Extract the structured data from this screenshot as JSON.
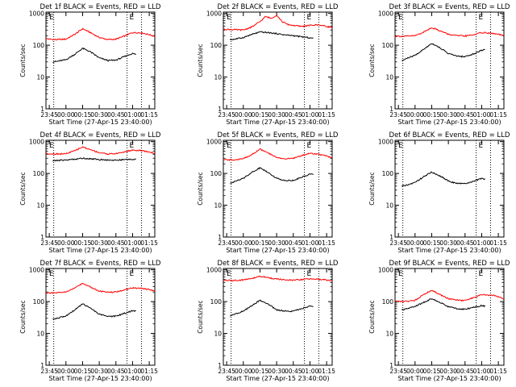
{
  "colors": {
    "events": "#000000",
    "lld": "#ff0000",
    "axis": "#000000",
    "background": "#ffffff"
  },
  "chart_data": [
    {
      "type": "line",
      "title": "Det 1f BLACK = Events, RED = LLD",
      "xlabel": "Start Time (27-Apr-15 23:40:00)",
      "ylabel": "Counts/sec",
      "yscale": "log",
      "ylim": [
        1,
        1100
      ],
      "xlim": [
        "23:42",
        "01:20"
      ],
      "xticks": [
        "23:45",
        "00:00",
        "00:15",
        "00:30",
        "00:45",
        "01:00",
        "01:15"
      ],
      "yticks": [
        "1",
        "10",
        "100",
        "1000"
      ],
      "markers": [
        "E",
        "E"
      ],
      "series": [
        {
          "name": "LLD",
          "x": [
            "23:42",
            "23:50",
            "00:00",
            "00:08",
            "00:15",
            "00:22",
            "00:30",
            "00:38",
            "00:45",
            "00:52",
            "01:00",
            "01:08",
            "01:15",
            "01:20"
          ],
          "values": [
            160,
            150,
            155,
            220,
            330,
            250,
            175,
            150,
            155,
            190,
            250,
            245,
            215,
            190
          ]
        },
        {
          "name": "Events",
          "x": [
            "23:48",
            "23:52",
            "00:00",
            "00:08",
            "00:15",
            "00:22",
            "00:30",
            "00:38",
            "00:45",
            "00:52",
            "01:00",
            "01:03"
          ],
          "values": [
            30,
            31,
            35,
            52,
            80,
            62,
            40,
            33,
            34,
            43,
            55,
            52
          ]
        }
      ]
    },
    {
      "type": "line",
      "title": "Det 2f BLACK = Events, RED = LLD",
      "xlabel": "Start Time (27-Apr-15 23:40:00)",
      "ylabel": "Counts/sec",
      "yscale": "log",
      "ylim": [
        1,
        1100
      ],
      "xlim": [
        "23:42",
        "01:20"
      ],
      "xticks": [
        "23:45",
        "00:00",
        "00:15",
        "00:30",
        "00:45",
        "01:00",
        "01:15"
      ],
      "yticks": [
        "1",
        "10",
        "100",
        "1000"
      ],
      "markers": [
        "E",
        "E"
      ],
      "series": [
        {
          "name": "LLD",
          "x": [
            "23:42",
            "23:50",
            "00:00",
            "00:08",
            "00:15",
            "00:20",
            "00:25",
            "00:30",
            "00:35",
            "00:40",
            "00:45",
            "00:52",
            "01:00",
            "01:08",
            "01:15",
            "01:20"
          ],
          "values": [
            320,
            310,
            300,
            380,
            550,
            800,
            700,
            880,
            550,
            450,
            420,
            390,
            420,
            440,
            390,
            360
          ]
        },
        {
          "name": "Events",
          "x": [
            "23:48",
            "23:52",
            "00:00",
            "00:08",
            "00:15",
            "00:22",
            "00:30",
            "00:38",
            "00:45",
            "00:52",
            "01:00",
            "01:03"
          ],
          "values": [
            150,
            155,
            175,
            220,
            260,
            250,
            230,
            210,
            200,
            185,
            170,
            165
          ]
        }
      ]
    },
    {
      "type": "line",
      "title": "Det 3f BLACK = Events, RED = LLD",
      "xlabel": "Start Time (27-Apr-15 23:40:00)",
      "ylabel": "Counts/sec",
      "yscale": "log",
      "ylim": [
        1,
        1100
      ],
      "xlim": [
        "23:42",
        "01:20"
      ],
      "xticks": [
        "23:45",
        "00:00",
        "00:15",
        "00:30",
        "00:45",
        "01:00",
        "01:15"
      ],
      "yticks": [
        "1",
        "10",
        "100",
        "1000"
      ],
      "markers": [
        "E",
        "E"
      ],
      "series": [
        {
          "name": "LLD",
          "x": [
            "23:42",
            "23:50",
            "00:00",
            "00:08",
            "00:15",
            "00:22",
            "00:30",
            "00:38",
            "00:45",
            "00:52",
            "01:00",
            "01:08",
            "01:15",
            "01:20"
          ],
          "values": [
            195,
            190,
            200,
            260,
            360,
            290,
            220,
            200,
            195,
            210,
            250,
            240,
            220,
            200
          ]
        },
        {
          "name": "Events",
          "x": [
            "23:48",
            "23:52",
            "00:00",
            "00:08",
            "00:15",
            "00:22",
            "00:30",
            "00:38",
            "00:45",
            "00:52",
            "01:00",
            "01:03"
          ],
          "values": [
            32,
            38,
            48,
            75,
            115,
            85,
            55,
            45,
            44,
            52,
            70,
            72
          ]
        }
      ]
    },
    {
      "type": "line",
      "title": "Det 4f BLACK = Events, RED = LLD",
      "xlabel": "Start Time (27-Apr-15 23:40:00)",
      "ylabel": "Counts/sec",
      "yscale": "log",
      "ylim": [
        1,
        1100
      ],
      "xlim": [
        "23:42",
        "01:20"
      ],
      "xticks": [
        "23:45",
        "00:00",
        "00:15",
        "00:30",
        "00:45",
        "01:00",
        "01:15"
      ],
      "yticks": [
        "1",
        "10",
        "100",
        "1000"
      ],
      "markers": [
        "E",
        "E"
      ],
      "series": [
        {
          "name": "LLD",
          "x": [
            "23:42",
            "23:50",
            "00:00",
            "00:08",
            "00:15",
            "00:22",
            "00:30",
            "00:38",
            "00:45",
            "00:52",
            "01:00",
            "01:08",
            "01:15",
            "01:20"
          ],
          "values": [
            420,
            410,
            415,
            520,
            680,
            560,
            450,
            410,
            420,
            470,
            540,
            520,
            470,
            430
          ]
        },
        {
          "name": "Events",
          "x": [
            "23:48",
            "23:52",
            "00:00",
            "00:08",
            "00:15",
            "00:22",
            "00:30",
            "00:38",
            "00:45",
            "00:52",
            "01:00",
            "01:03"
          ],
          "values": [
            250,
            255,
            265,
            280,
            300,
            290,
            270,
            265,
            260,
            270,
            280,
            275
          ]
        }
      ]
    },
    {
      "type": "line",
      "title": "Det 5f BLACK = Events, RED = LLD",
      "xlabel": "Start Time (27-Apr-15 23:40:00)",
      "ylabel": "Counts/sec",
      "yscale": "log",
      "ylim": [
        1,
        1100
      ],
      "xlim": [
        "23:42",
        "01:20"
      ],
      "xticks": [
        "23:45",
        "00:00",
        "00:15",
        "00:30",
        "00:45",
        "01:00",
        "01:15"
      ],
      "yticks": [
        "1",
        "10",
        "100",
        "1000"
      ],
      "markers": [
        "E",
        "E"
      ],
      "series": [
        {
          "name": "LLD",
          "x": [
            "23:42",
            "23:50",
            "00:00",
            "00:08",
            "00:15",
            "00:22",
            "00:30",
            "00:38",
            "00:45",
            "00:52",
            "01:00",
            "01:08",
            "01:15",
            "01:20"
          ],
          "values": [
            270,
            265,
            290,
            400,
            580,
            440,
            320,
            285,
            300,
            360,
            430,
            400,
            350,
            300
          ]
        },
        {
          "name": "Events",
          "x": [
            "23:48",
            "23:52",
            "00:00",
            "00:08",
            "00:15",
            "00:22",
            "00:30",
            "00:38",
            "00:45",
            "00:52",
            "01:00",
            "01:03"
          ],
          "values": [
            50,
            55,
            70,
            110,
            150,
            110,
            70,
            60,
            60,
            75,
            95,
            92
          ]
        }
      ]
    },
    {
      "type": "line",
      "title": "Det 6f BLACK = Events, RED = LLD",
      "xlabel": "Start Time (27-Apr-15 23:40:00)",
      "ylabel": "Counts/sec",
      "yscale": "log",
      "ylim": [
        1,
        1100
      ],
      "xlim": [
        "23:42",
        "01:20"
      ],
      "xticks": [
        "23:45",
        "00:00",
        "00:15",
        "00:30",
        "00:45",
        "01:00",
        "01:15"
      ],
      "yticks": [
        "1",
        "10",
        "100",
        "1000"
      ],
      "markers": [
        "E",
        "E"
      ],
      "series": [
        {
          "name": "Events",
          "x": [
            "23:48",
            "23:52",
            "00:00",
            "00:08",
            "00:15",
            "00:22",
            "00:30",
            "00:38",
            "00:45",
            "00:52",
            "01:00",
            "01:03"
          ],
          "values": [
            40,
            42,
            52,
            80,
            110,
            85,
            58,
            48,
            48,
            55,
            70,
            66
          ]
        }
      ]
    },
    {
      "type": "line",
      "title": "Det 7f BLACK = Events, RED = LLD",
      "xlabel": "Start Time (27-Apr-15 23:40:00)",
      "ylabel": "Counts/sec",
      "yscale": "log",
      "ylim": [
        1,
        1100
      ],
      "xlim": [
        "23:42",
        "01:20"
      ],
      "xticks": [
        "23:45",
        "00:00",
        "00:15",
        "00:30",
        "00:45",
        "01:00",
        "01:15"
      ],
      "yticks": [
        "1",
        "10",
        "100",
        "1000"
      ],
      "markers": [
        "E",
        "E"
      ],
      "series": [
        {
          "name": "LLD",
          "x": [
            "23:42",
            "23:50",
            "00:00",
            "00:08",
            "00:15",
            "00:22",
            "00:30",
            "00:38",
            "00:45",
            "00:52",
            "01:00",
            "01:08",
            "01:15",
            "01:20"
          ],
          "values": [
            190,
            185,
            200,
            270,
            370,
            290,
            215,
            195,
            200,
            230,
            270,
            260,
            240,
            210
          ]
        },
        {
          "name": "Events",
          "x": [
            "23:48",
            "23:52",
            "00:00",
            "00:08",
            "00:15",
            "00:22",
            "00:30",
            "00:38",
            "00:45",
            "00:52",
            "01:00",
            "01:03"
          ],
          "values": [
            28,
            30,
            35,
            55,
            85,
            62,
            40,
            34,
            35,
            42,
            52,
            50
          ]
        }
      ]
    },
    {
      "type": "line",
      "title": "Det 8f BLACK = Events, RED = LLD",
      "xlabel": "Start Time (27-Apr-15 23:40:00)",
      "ylabel": "Counts/sec",
      "yscale": "log",
      "ylim": [
        1,
        1100
      ],
      "xlim": [
        "23:42",
        "01:20"
      ],
      "xticks": [
        "23:45",
        "00:00",
        "00:15",
        "00:30",
        "00:45",
        "01:00",
        "01:15"
      ],
      "yticks": [
        "1",
        "10",
        "100",
        "1000"
      ],
      "markers": [
        "E",
        "E"
      ],
      "series": [
        {
          "name": "LLD",
          "x": [
            "23:42",
            "23:50",
            "00:00",
            "00:08",
            "00:15",
            "00:22",
            "00:30",
            "00:38",
            "00:45",
            "00:52",
            "01:00",
            "01:08",
            "01:15",
            "01:20"
          ],
          "values": [
            470,
            460,
            480,
            540,
            620,
            570,
            510,
            480,
            470,
            490,
            520,
            500,
            480,
            460
          ]
        },
        {
          "name": "Events",
          "x": [
            "23:48",
            "23:52",
            "00:00",
            "00:08",
            "00:15",
            "00:22",
            "00:30",
            "00:38",
            "00:45",
            "00:52",
            "01:00",
            "01:03"
          ],
          "values": [
            35,
            40,
            50,
            75,
            110,
            85,
            55,
            50,
            50,
            60,
            72,
            70
          ]
        }
      ]
    },
    {
      "type": "line",
      "title": "Det 9f BLACK = Events, RED = LLD",
      "xlabel": "Start Time (27-Apr-15 23:40:00)",
      "ylabel": "Counts/sec",
      "yscale": "log",
      "ylim": [
        1,
        1100
      ],
      "xlim": [
        "23:42",
        "01:20"
      ],
      "xticks": [
        "23:45",
        "00:00",
        "00:15",
        "00:30",
        "00:45",
        "01:00",
        "01:15"
      ],
      "yticks": [
        "1",
        "10",
        "100",
        "1000"
      ],
      "markers": [
        "E",
        "E"
      ],
      "series": [
        {
          "name": "LLD",
          "x": [
            "23:42",
            "23:50",
            "00:00",
            "00:08",
            "00:15",
            "00:22",
            "00:30",
            "00:38",
            "00:45",
            "00:52",
            "01:00",
            "01:08",
            "01:15",
            "01:20"
          ],
          "values": [
            105,
            100,
            110,
            170,
            230,
            170,
            125,
            110,
            108,
            130,
            165,
            160,
            145,
            120
          ]
        },
        {
          "name": "Events",
          "x": [
            "23:48",
            "23:52",
            "00:00",
            "00:08",
            "00:15",
            "00:22",
            "00:30",
            "00:38",
            "00:45",
            "00:52",
            "01:00",
            "01:03"
          ],
          "values": [
            55,
            58,
            70,
            95,
            125,
            95,
            70,
            60,
            58,
            65,
            75,
            72
          ]
        }
      ]
    }
  ]
}
